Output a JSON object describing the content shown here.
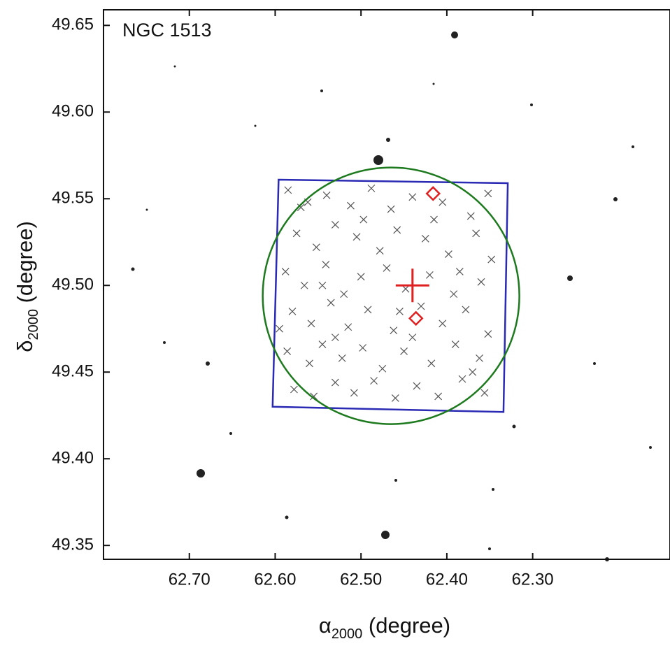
{
  "chart_data": {
    "type": "scatter",
    "title": "NGC 1513",
    "x_label": {
      "symbol": "α",
      "subscript": "2000",
      "unit": " (degree)"
    },
    "y_label": {
      "symbol": "δ",
      "subscript": "2000",
      "unit": " (degree)"
    },
    "xlim": [
      62.8,
      62.14
    ],
    "ylim": [
      49.342,
      49.659
    ],
    "xticks": [
      {
        "value": 62.7,
        "label": "62.70"
      },
      {
        "value": 62.6,
        "label": "62.60"
      },
      {
        "value": 62.5,
        "label": "62.50"
      },
      {
        "value": 62.4,
        "label": "62.40"
      },
      {
        "value": 62.3,
        "label": "62.30"
      }
    ],
    "yticks": [
      49.35,
      {
        "value": 49.4,
        "label": "49.40"
      },
      49.45,
      {
        "value": 49.5,
        "label": "49.50"
      },
      49.55,
      {
        "value": 49.6,
        "label": "49.60"
      },
      49.65
    ],
    "members": {
      "color": "#555555",
      "x": [
        62.585,
        62.562,
        62.54,
        62.512,
        62.488,
        62.465,
        62.44,
        62.405,
        62.372,
        62.352,
        62.575,
        62.552,
        62.53,
        62.505,
        62.478,
        62.458,
        62.425,
        62.398,
        62.366,
        62.348,
        62.588,
        62.566,
        62.541,
        62.52,
        62.5,
        62.47,
        62.448,
        62.42,
        62.392,
        62.36,
        62.58,
        62.558,
        62.535,
        62.515,
        62.492,
        62.462,
        62.43,
        62.405,
        62.378,
        62.352,
        62.586,
        62.56,
        62.545,
        62.522,
        62.498,
        62.475,
        62.45,
        62.418,
        62.39,
        62.362,
        62.578,
        62.555,
        62.53,
        62.508,
        62.485,
        62.46,
        62.435,
        62.41,
        62.382,
        62.356,
        62.57,
        62.497,
        62.415,
        62.545,
        62.455,
        62.385,
        62.53,
        62.44,
        62.37,
        62.595
      ],
      "y": [
        49.555,
        49.548,
        49.552,
        49.546,
        49.556,
        49.544,
        49.551,
        49.548,
        49.54,
        49.553,
        49.53,
        49.522,
        49.535,
        49.528,
        49.52,
        49.532,
        49.527,
        49.518,
        49.53,
        49.515,
        49.508,
        49.5,
        49.512,
        49.495,
        49.505,
        49.51,
        49.498,
        49.506,
        49.495,
        49.502,
        49.485,
        49.478,
        49.49,
        49.476,
        49.486,
        49.474,
        49.488,
        49.478,
        49.486,
        49.472,
        49.462,
        49.455,
        49.466,
        49.458,
        49.464,
        49.452,
        49.462,
        49.455,
        49.466,
        49.458,
        49.44,
        49.436,
        49.444,
        49.438,
        49.445,
        49.435,
        49.442,
        49.436,
        49.446,
        49.438,
        49.545,
        49.538,
        49.538,
        49.5,
        49.485,
        49.508,
        49.47,
        49.47,
        49.45,
        49.475
      ]
    },
    "field": {
      "color": "#2a2ab4",
      "x": [
        62.596,
        62.329,
        62.334,
        62.603
      ],
      "y": [
        49.561,
        49.559,
        49.427,
        49.43
      ]
    },
    "circle": {
      "color": "#1e7a1e",
      "center": [
        62.465,
        49.494
      ],
      "radius": 0.074
    },
    "center": {
      "color": "#e02020",
      "x": 62.44,
      "y": 49.5
    },
    "highlights": {
      "color": "#e02020",
      "x": [
        62.416,
        62.436
      ],
      "y": [
        49.553,
        49.481
      ]
    }
  }
}
